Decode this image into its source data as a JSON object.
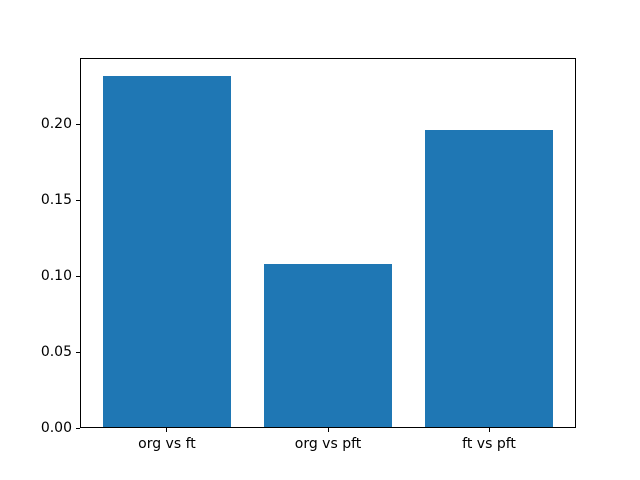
{
  "chart_data": {
    "type": "bar",
    "categories": [
      "org vs ft",
      "org vs pft",
      "ft vs pft"
    ],
    "values": [
      0.232,
      0.108,
      0.196
    ],
    "bar_color": "#1f77b4",
    "bar_width_fraction": 0.8,
    "xlim": [
      -0.54,
      2.54
    ],
    "ylim": [
      0,
      0.2436
    ],
    "yticks": [
      0.0,
      0.05,
      0.1,
      0.15,
      0.2
    ],
    "ytick_labels": [
      "0.00",
      "0.05",
      "0.10",
      "0.15",
      "0.20"
    ],
    "grid": false,
    "legend_position": "none",
    "background_color": "#ffffff",
    "spine_color": "#000000"
  }
}
